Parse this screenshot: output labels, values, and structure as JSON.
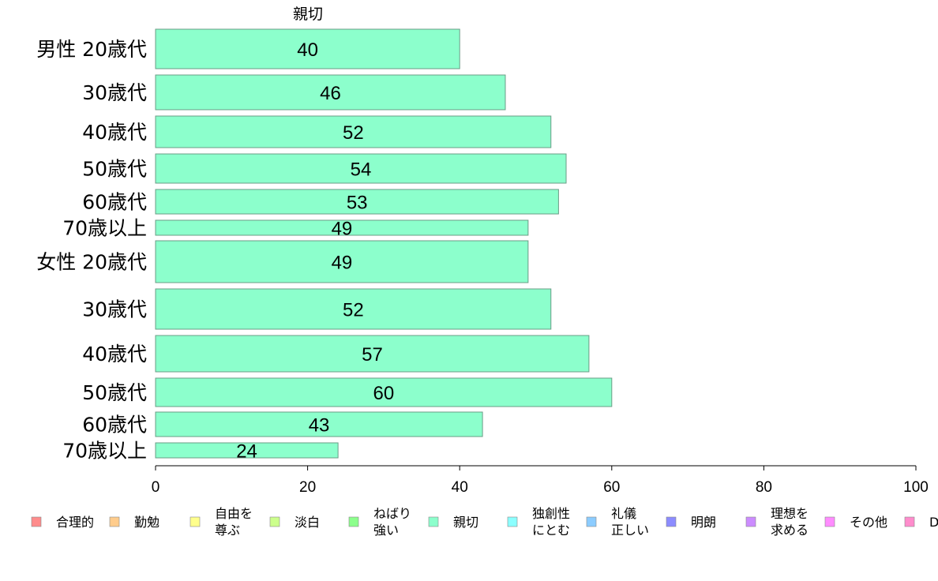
{
  "chart_data": {
    "type": "bar",
    "orientation": "horizontal",
    "title": "親切",
    "categories": [
      "男性 20歳代",
      "30歳代",
      "40歳代",
      "50歳代",
      "60歳代",
      "70歳以上",
      "女性 20歳代",
      "30歳代",
      "40歳代",
      "50歳代",
      "60歳代",
      "70歳以上"
    ],
    "values": [
      40,
      46,
      52,
      54,
      53,
      49,
      49,
      52,
      57,
      60,
      43,
      24
    ],
    "bar_color": "#8cffcc",
    "xlim": [
      0,
      100
    ],
    "xticks": [
      0,
      20,
      40,
      60,
      80,
      100
    ],
    "grid": false,
    "legend_position": "bottom",
    "legend": [
      {
        "label": "合理的",
        "color": "#ff8c8c"
      },
      {
        "label": "勤勉",
        "color": "#ffcc8c"
      },
      {
        "label": "自由を\n尊ぶ",
        "color": "#ffff8c"
      },
      {
        "label": "淡白",
        "color": "#ccff8c"
      },
      {
        "label": "ねばり\n強い",
        "color": "#8cff8c"
      },
      {
        "label": "親切",
        "color": "#8cffcc"
      },
      {
        "label": "独創性\nにとむ",
        "color": "#8cffff"
      },
      {
        "label": "礼儀\n正しい",
        "color": "#8cccff"
      },
      {
        "label": "明朗",
        "color": "#8c8cff"
      },
      {
        "label": "理想を\n求める",
        "color": "#cc8cff"
      },
      {
        "label": "その他",
        "color": "#ff8cff"
      },
      {
        "label": "D",
        "color": "#ff8ccc"
      }
    ]
  }
}
